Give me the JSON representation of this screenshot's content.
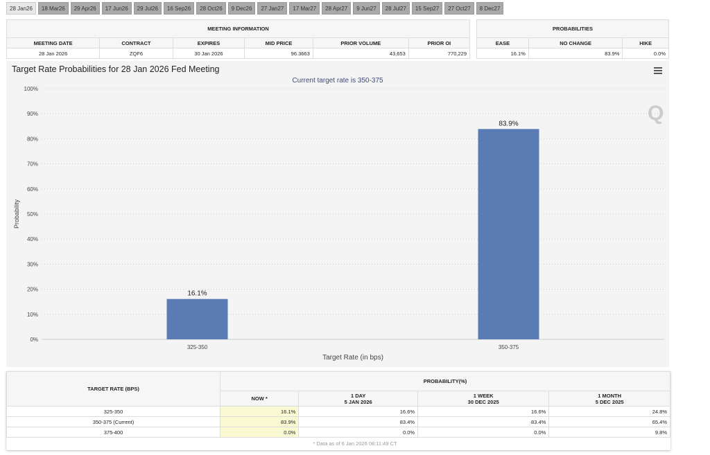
{
  "tabs": [
    "28 Jan26",
    "18 Mar26",
    "29 Apr26",
    "17 Jun26",
    "29 Jul26",
    "16 Sep26",
    "28 Oct26",
    "9 Dec26",
    "27 Jan27",
    "17 Mar27",
    "28 Apr27",
    "9 Jun27",
    "28 Jul27",
    "15 Sep27",
    "27 Oct27",
    "8 Dec27"
  ],
  "meeting": {
    "title": "MEETING INFORMATION",
    "headers": [
      "MEETING DATE",
      "CONTRACT",
      "EXPIRES",
      "MID PRICE",
      "PRIOR VOLUME",
      "PRIOR OI"
    ],
    "values": [
      "28 Jan 2026",
      "ZQF6",
      "30 Jan 2026",
      "96.3663",
      "43,653",
      "770,229"
    ]
  },
  "probabilities": {
    "title": "PROBABILITIES",
    "headers": [
      "EASE",
      "NO CHANGE",
      "HIKE"
    ],
    "values": [
      "16.1%",
      "83.9%",
      "0.0%"
    ]
  },
  "chart_data": {
    "type": "bar",
    "title": "Target Rate Probabilities for 28 Jan 2026 Fed Meeting",
    "subtitle": "Current target rate is 350-375",
    "xlabel": "Target Rate (in bps)",
    "ylabel": "Probability",
    "categories": [
      "325-350",
      "350-375"
    ],
    "values": [
      16.1,
      83.9
    ],
    "data_labels": [
      "16.1%",
      "83.9%"
    ],
    "ylim": [
      0,
      100
    ],
    "yticks": [
      "0%",
      "10%",
      "20%",
      "30%",
      "40%",
      "50%",
      "60%",
      "70%",
      "80%",
      "90%",
      "100%"
    ],
    "color": "#5b7bb5",
    "watermark": "Q"
  },
  "table": {
    "col1": "TARGET RATE (BPS)",
    "group": "PROBABILITY(%)",
    "cols": [
      [
        "NOW *",
        ""
      ],
      [
        "1 DAY",
        "5 JAN 2026"
      ],
      [
        "1 WEEK",
        "30 DEC 2025"
      ],
      [
        "1 MONTH",
        "5 DEC 2025"
      ]
    ],
    "rows": [
      [
        "325-350",
        "16.1%",
        "16.6%",
        "16.6%",
        "24.8%"
      ],
      [
        "350-375 (Current)",
        "83.9%",
        "83.4%",
        "83.4%",
        "65.4%"
      ],
      [
        "375-400",
        "0.0%",
        "0.0%",
        "0.0%",
        "9.8%"
      ]
    ],
    "footnote": "* Data as of 6 Jan 2026 08:11:49 CT"
  }
}
